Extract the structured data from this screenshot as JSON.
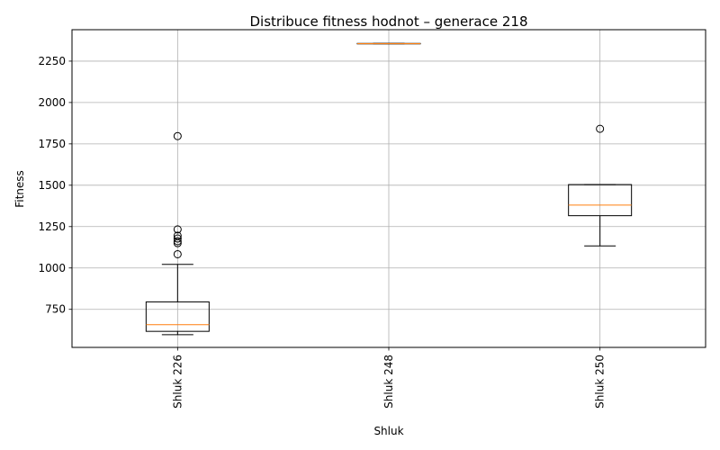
{
  "chart_data": {
    "type": "boxplot",
    "title": "Distribuce fitness hodnot – generace 218",
    "xlabel": "Shluk",
    "ylabel": "Fitness",
    "ylim": [
      520,
      2440
    ],
    "yticks": [
      750,
      1000,
      1250,
      1500,
      1750,
      2000,
      2250
    ],
    "grid": true,
    "x_tick_rotation": 90,
    "categories": [
      "Shluk 226",
      "Shluk 248",
      "Shluk 250"
    ],
    "boxes": [
      {
        "category": "Shluk 226",
        "whisker_low": 597,
        "q1": 617,
        "median": 657,
        "q3": 795,
        "whisker_high": 1022,
        "outliers": [
          1083,
          1150,
          1162,
          1178,
          1195,
          1233,
          1797
        ]
      },
      {
        "category": "Shluk 248",
        "whisker_low": 2355,
        "q1": 2355,
        "median": 2356,
        "q3": 2357,
        "whisker_high": 2357,
        "outliers": []
      },
      {
        "category": "Shluk 250",
        "whisker_low": 1133,
        "q1": 1316,
        "median": 1380,
        "q3": 1504,
        "whisker_high": 1504,
        "outliers": [
          1841
        ]
      }
    ],
    "colors": {
      "box": "#000000",
      "median": "#ff7f0e",
      "grid": "#b0b0b0"
    }
  }
}
